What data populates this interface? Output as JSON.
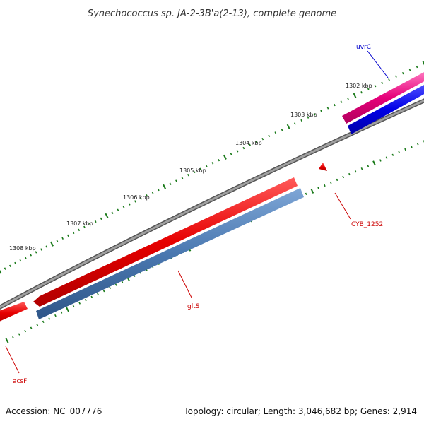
{
  "title": "Synechococcus sp. JA-2-3B'a(2-13), complete genome",
  "footer": {
    "accession": "Accession: NC_007776",
    "summary": "Topology: circular; Length: 3,046,682 bp; Genes: 2,914"
  },
  "scale": {
    "unit": "kbp",
    "labels": [
      "1302 kbp",
      "1303 kbp",
      "1304 kbp",
      "1305 kbp",
      "1306 kbp",
      "1307 kbp",
      "1308 kbp"
    ]
  },
  "genes": [
    {
      "name": "uvrC",
      "color": "#0000cc"
    },
    {
      "name": "CYB_1252",
      "color": "#cc0000"
    },
    {
      "name": "gltS",
      "color": "#cc0000"
    },
    {
      "name": "acsF",
      "color": "#cc0000"
    }
  ],
  "colors": {
    "backbone": "#808080",
    "cds_red": "#e60000",
    "cds_pink": "#e6007a",
    "cds_blue": "#0000e6",
    "cds_steel": "#4a78b0",
    "tick_green": "#1a7a1a"
  }
}
